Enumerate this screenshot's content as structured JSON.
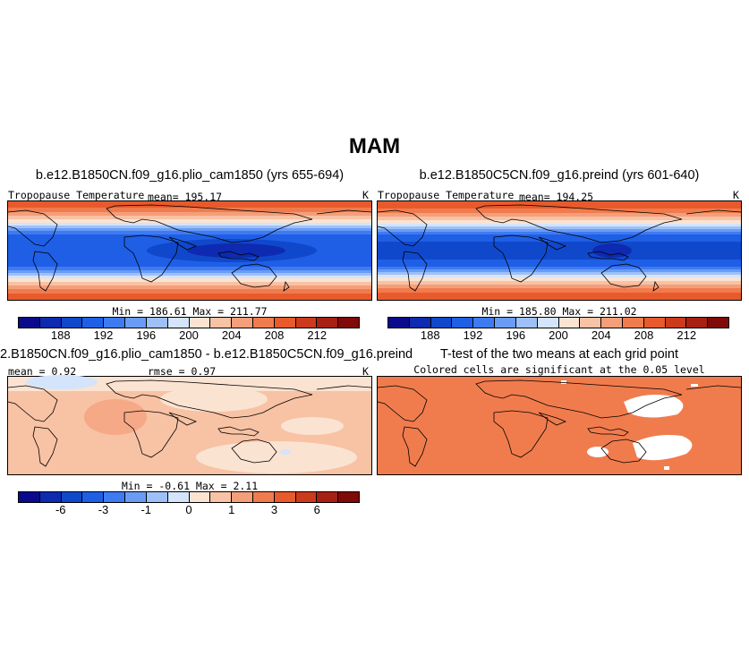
{
  "figure": {
    "title": "MAM"
  },
  "panels": [
    {
      "title": "b.e12.B1850CN.f09_g16.plio_cam1850 (yrs 655-694)",
      "left_label": "Tropopause Temperature",
      "stat": "mean= 195.17",
      "units": "K",
      "minmax": "Min = 186.61 Max = 211.77"
    },
    {
      "title": "b.e12.B1850C5CN.f09_g16.preind (yrs 601-640)",
      "left_label": "Tropopause Temperature",
      "stat": "mean= 194.25",
      "units": "K",
      "minmax": "Min = 185.80 Max = 211.02"
    },
    {
      "title": "2.B1850CN.f09_g16.plio_cam1850 - b.e12.B1850C5CN.f09_g16.preind",
      "left_label": "mean = 0.92",
      "stat": "rmse = 0.97",
      "units": "K",
      "minmax": "Min = -0.61 Max = 2.11"
    },
    {
      "title": "T-test of the two means at each grid point",
      "subtitle": "Colored cells are significant at the 0.05 level"
    }
  ],
  "colorbars": {
    "absolute": {
      "colors": [
        "#0a0a8c",
        "#0d2ab0",
        "#1048cc",
        "#1f5fe6",
        "#3e7bf2",
        "#6a9cf6",
        "#9ec0f8",
        "#d3e4fb",
        "#fbe3d2",
        "#f8c2a4",
        "#f59e7a",
        "#f07c4e",
        "#e85a2c",
        "#cc3a1c",
        "#a82012",
        "#7f0a08"
      ],
      "tick_labels": [
        "188",
        "192",
        "196",
        "200",
        "204",
        "208",
        "212"
      ]
    },
    "difference": {
      "colors": [
        "#0a0a8c",
        "#0d2ab0",
        "#1048cc",
        "#1f5fe6",
        "#3e7bf2",
        "#6a9cf6",
        "#9ec0f8",
        "#d3e4fb",
        "#fbe3d2",
        "#f8c2a4",
        "#f59e7a",
        "#f07c4e",
        "#e85a2c",
        "#cc3a1c",
        "#a82012",
        "#7f0a08"
      ],
      "tick_labels": [
        "-6",
        "-3",
        "-1",
        "0",
        "1",
        "3",
        "6"
      ]
    }
  }
}
